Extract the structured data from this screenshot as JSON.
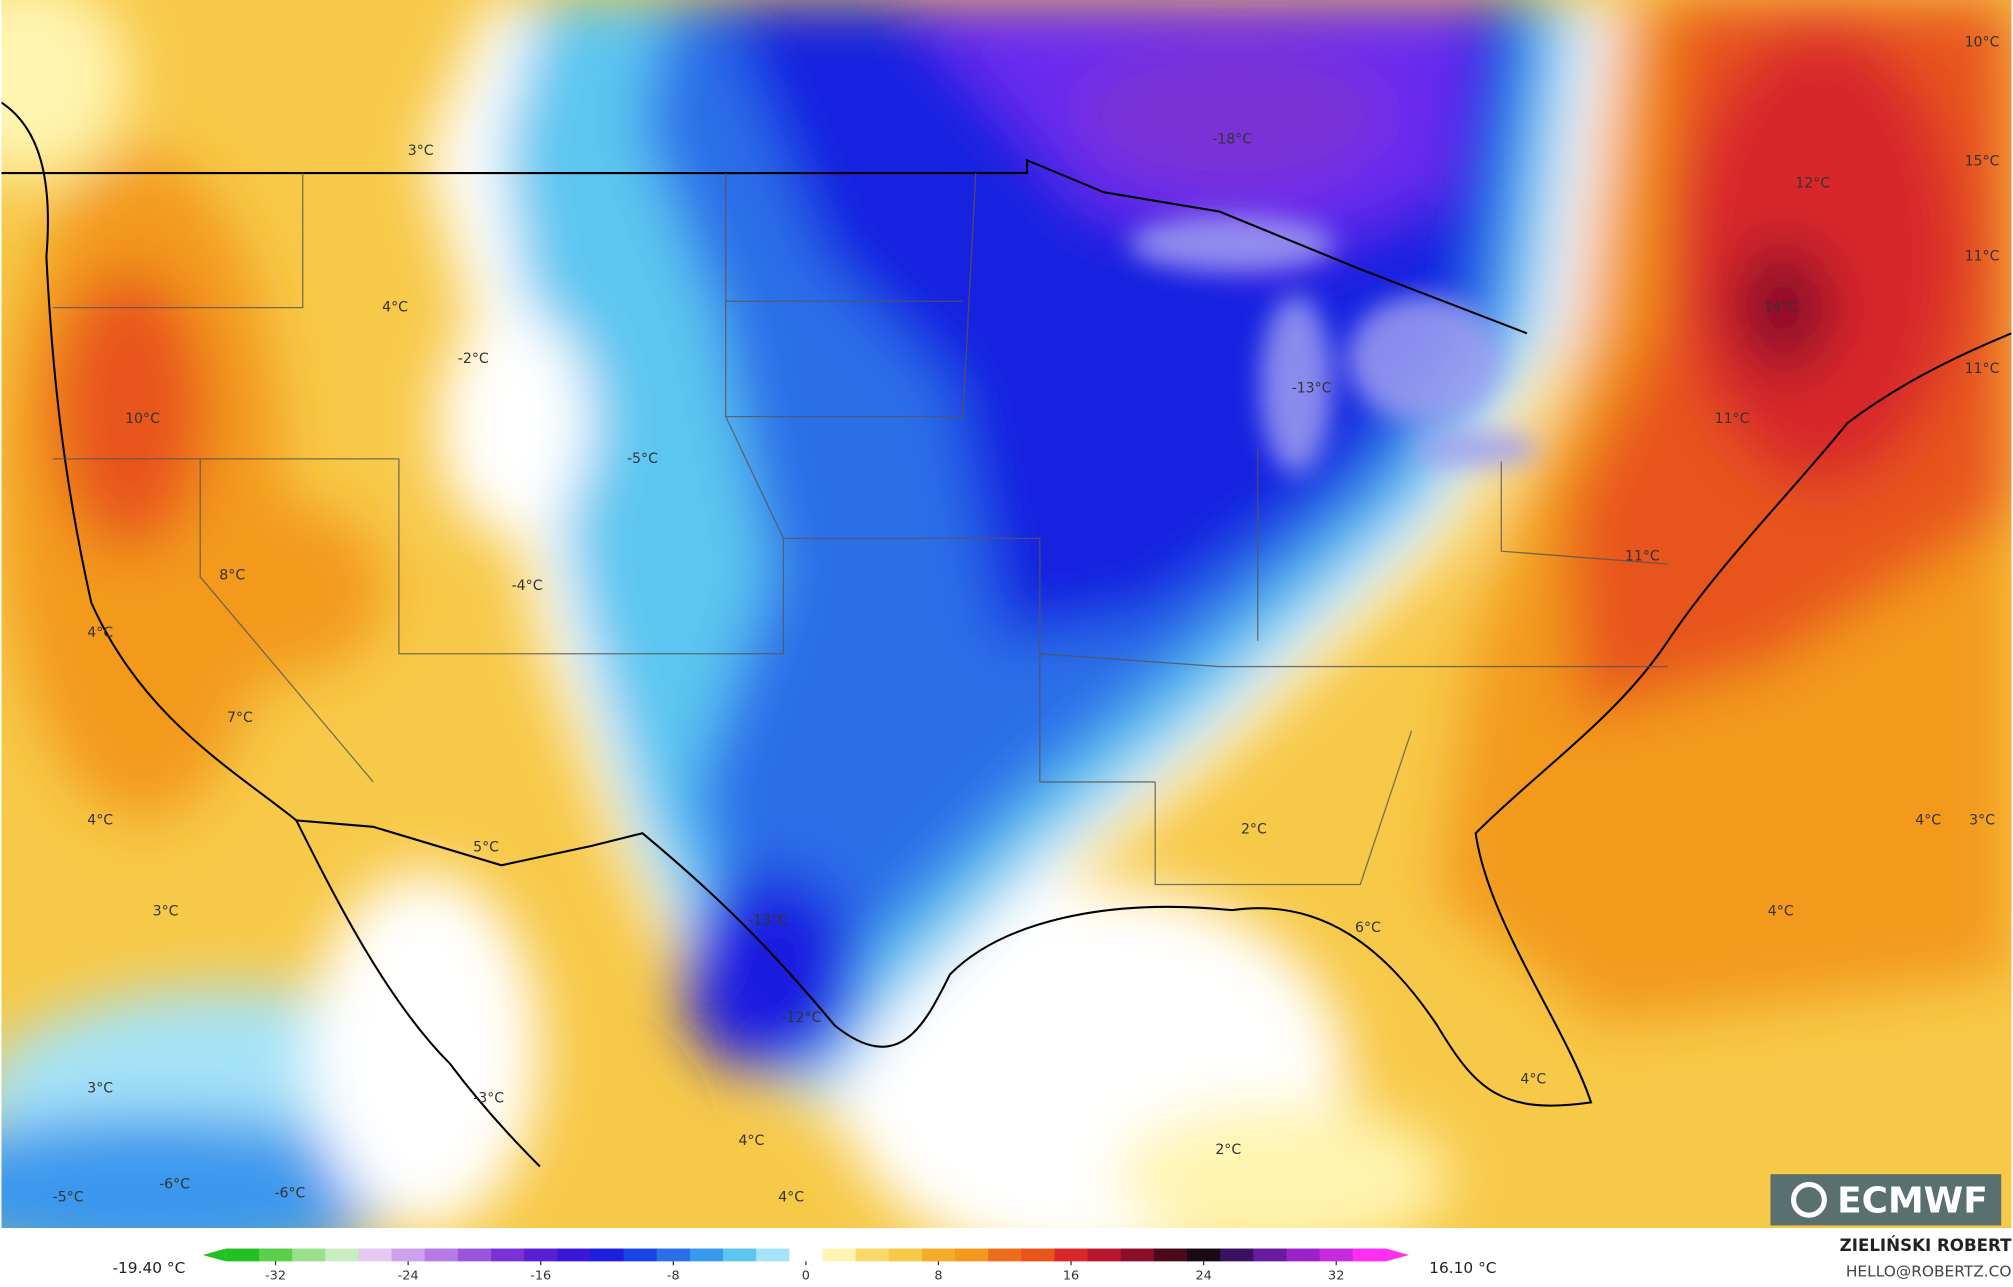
{
  "map": {
    "labels": [
      "3°C",
      "4°C",
      "-2°C",
      "10°C",
      "-5°C",
      "8°C",
      "-4°C",
      "4°C",
      "7°C",
      "4°C",
      "3°C",
      "5°C",
      "-13°C",
      "-12°C",
      "3°C",
      "-3°C",
      "-5°C",
      "-6°C",
      "-6°C",
      "4°C",
      "4°C",
      "2°C",
      "2°C",
      "6°C",
      "4°C",
      "4°C",
      "4°C",
      "3°C",
      "11°C",
      "11°C",
      "14°C",
      "11°C",
      "11°C",
      "12°C",
      "15°C",
      "10°C",
      "-18°C",
      "-13°C"
    ],
    "colorbar": {
      "min_label": "-19.40 °C",
      "max_label": "16.10 °C",
      "lim": [
        -35,
        35
      ],
      "ticks": [
        -32,
        -24,
        -16,
        -8,
        0,
        8,
        16,
        24,
        32
      ],
      "colors": [
        "#22c022",
        "#5ccf4a",
        "#9adf8a",
        "#c9efc0",
        "#e6c8f5",
        "#cfa0ee",
        "#b67ae6",
        "#9b55dd",
        "#7a32d6",
        "#5a1fd4",
        "#3a17d8",
        "#1c1fe0",
        "#1a45e6",
        "#2a6ee8",
        "#3a98ee",
        "#5cc6f0",
        "#a6e3f7",
        "#ffffff",
        "#fff4b0",
        "#f9d96a",
        "#f7c948",
        "#f5ac2a",
        "#f39a1e",
        "#ec6d1c",
        "#e8541c",
        "#d8282a",
        "#b8162c",
        "#8c0e2c",
        "#4a0a1c",
        "#1a0a14",
        "#3a1060",
        "#6a1aa0",
        "#9a22c8",
        "#c82ae0",
        "#ff2ef0"
      ]
    },
    "credit": {
      "name": "ZIELIŃSKI ROBERT",
      "email": "HELLO@ROBERTZ.CO"
    },
    "logo": "ECMWF"
  }
}
